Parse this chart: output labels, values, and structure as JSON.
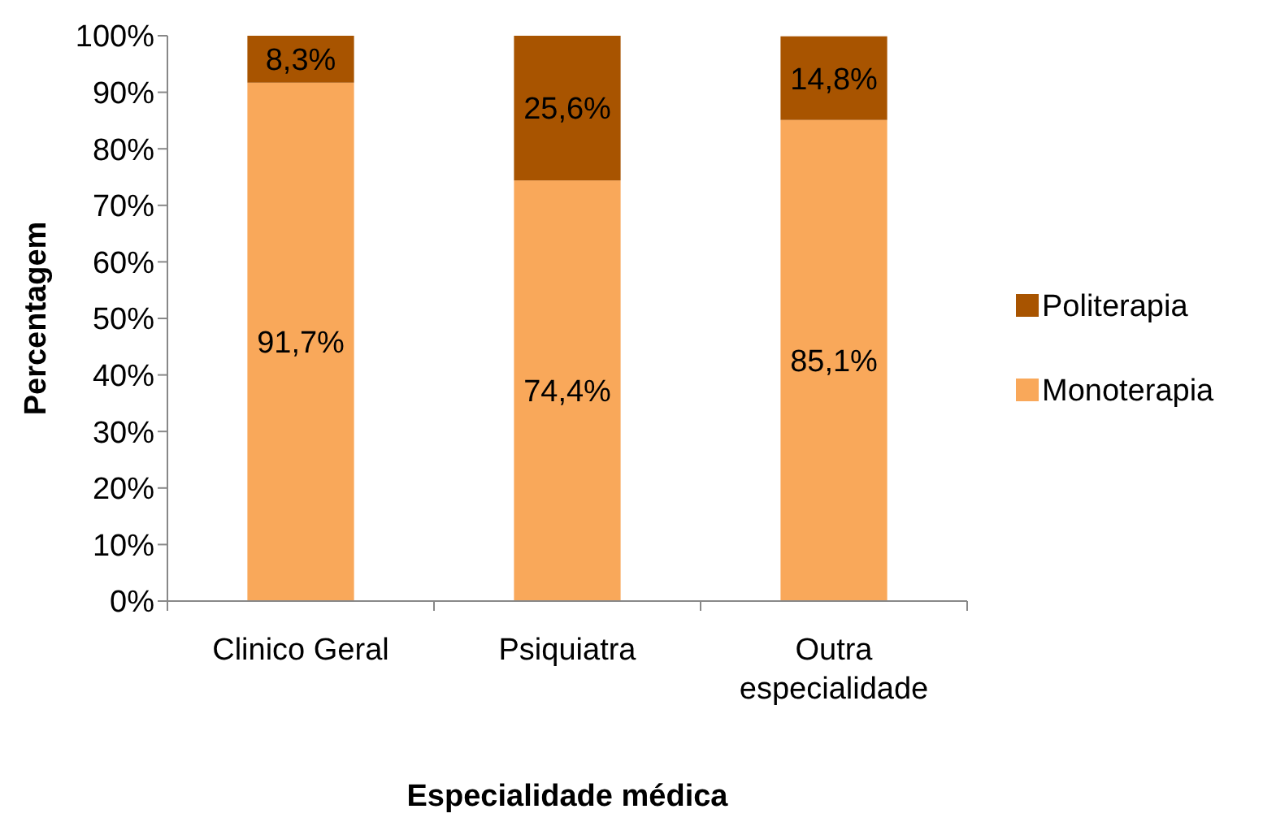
{
  "chart_data": {
    "type": "bar",
    "stacked": true,
    "xlabel": "Especialidade médica",
    "ylabel": "Percentagem",
    "categories": [
      "Clinico Geral",
      "Psiquiatra",
      "Outra especialidade"
    ],
    "series": [
      {
        "name": "Monoterapia",
        "color": "#f9a85a",
        "values": [
          91.7,
          74.4,
          85.1
        ],
        "value_labels": [
          "91,7%",
          "74,4%",
          "85,1%"
        ]
      },
      {
        "name": "Politerapia",
        "color": "#a85400",
        "values": [
          8.3,
          25.6,
          14.8
        ],
        "value_labels": [
          "8,3%",
          "25,6%",
          "14,8%"
        ]
      }
    ],
    "ylim": [
      0,
      100
    ],
    "yticks": [
      {
        "value": 0,
        "label": "0%"
      },
      {
        "value": 10,
        "label": "10%"
      },
      {
        "value": 20,
        "label": "20%"
      },
      {
        "value": 30,
        "label": "30%"
      },
      {
        "value": 40,
        "label": "40%"
      },
      {
        "value": 50,
        "label": "50%"
      },
      {
        "value": 60,
        "label": "60%"
      },
      {
        "value": 70,
        "label": "70%"
      },
      {
        "value": 80,
        "label": "80%"
      },
      {
        "value": 90,
        "label": "90%"
      },
      {
        "value": 100,
        "label": "100%"
      }
    ],
    "grid": false,
    "legend": "right"
  }
}
